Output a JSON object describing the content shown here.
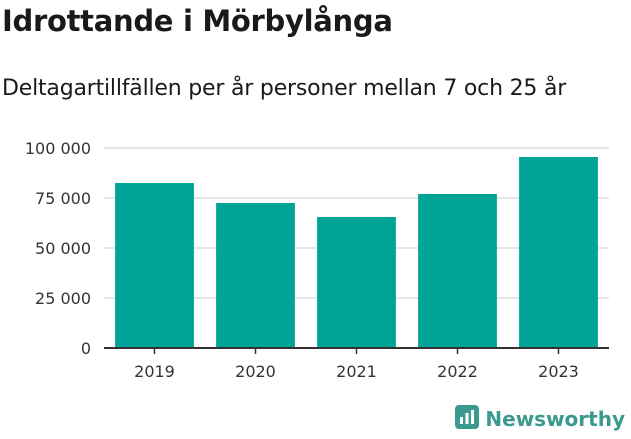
{
  "header": {
    "title": "Idrottande i Mörbylånga",
    "subtitle": "Deltagartillfällen per år personer mellan 7 och 25 år"
  },
  "brand": {
    "name": "Newsworthy",
    "icon": "bar-chart-icon",
    "color": "#3a9a90"
  },
  "colors": {
    "bar": "#00a398",
    "grid": "#dddddd",
    "axis": "#333333"
  },
  "chart_data": {
    "type": "bar",
    "categories": [
      "2019",
      "2020",
      "2021",
      "2022",
      "2023"
    ],
    "values": [
      82500,
      72500,
      65500,
      77000,
      95500
    ],
    "ylim": [
      0,
      100000
    ],
    "yticks": [
      0,
      25000,
      50000,
      75000,
      100000
    ],
    "ytick_labels": [
      "0",
      "25 000",
      "50 000",
      "75 000",
      "100 000"
    ],
    "grid": true,
    "legend": "none"
  }
}
